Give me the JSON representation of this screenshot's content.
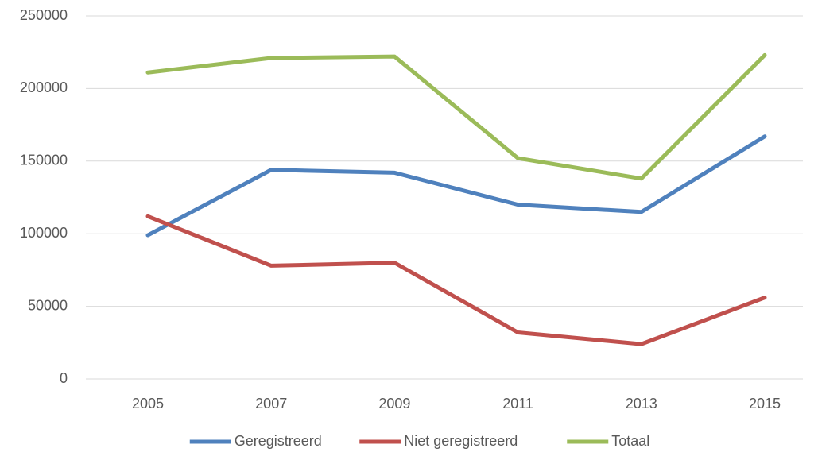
{
  "chart_data": {
    "type": "line",
    "categories": [
      "2005",
      "2007",
      "2009",
      "2011",
      "2013",
      "2015"
    ],
    "series": [
      {
        "name": "Geregistreerd",
        "color": "#4f81bd",
        "values": [
          99000,
          144000,
          142000,
          120000,
          115000,
          167000
        ]
      },
      {
        "name": "Niet geregistreerd",
        "color": "#c0504d",
        "values": [
          112000,
          78000,
          80000,
          32000,
          24000,
          56000
        ]
      },
      {
        "name": "Totaal",
        "color": "#9bbb59",
        "values": [
          211000,
          221000,
          222000,
          152000,
          138000,
          223000
        ]
      }
    ],
    "ylim": [
      0,
      250000
    ],
    "yticks": [
      0,
      50000,
      100000,
      150000,
      200000,
      250000
    ],
    "grid": true,
    "legend": "bottom"
  }
}
